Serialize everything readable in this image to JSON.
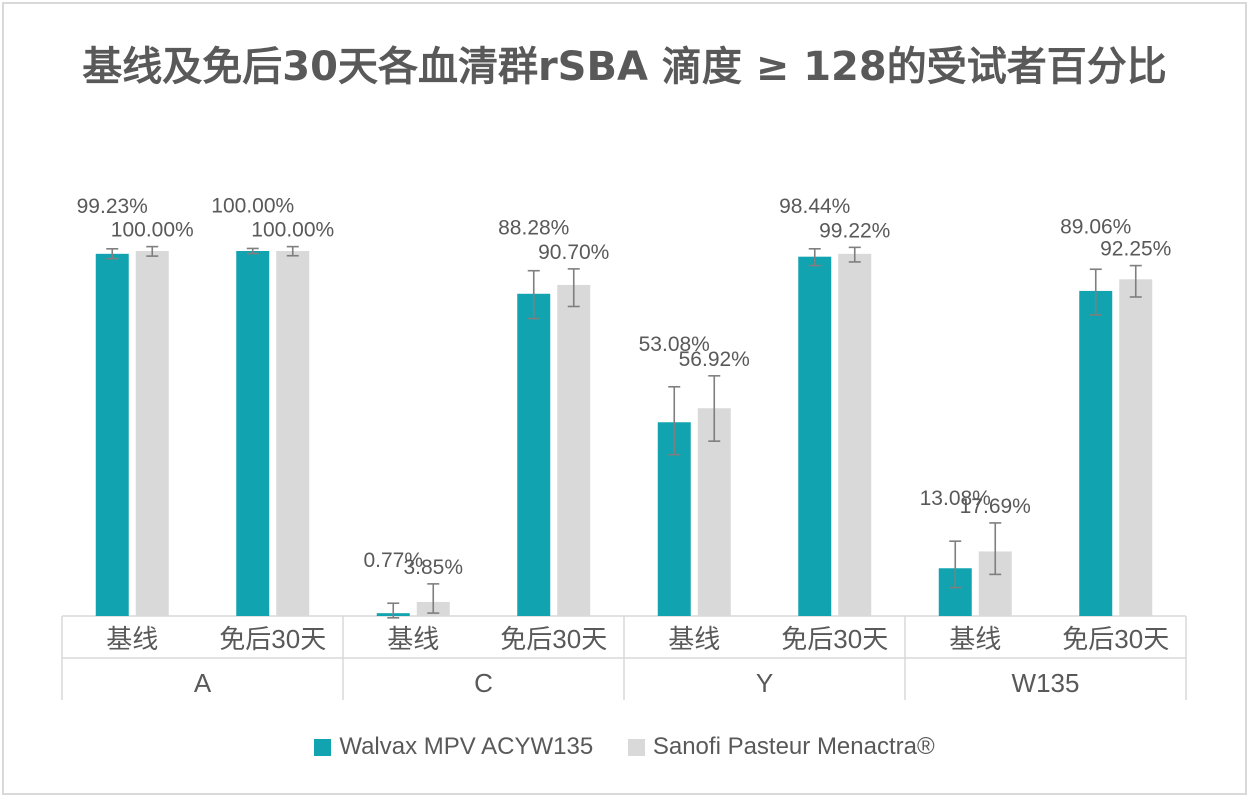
{
  "chart_data": {
    "type": "bar",
    "title": "基线及免后30天各血清群rSBA 滴度 ≥ 128的受试者百分比",
    "groups": [
      "A",
      "C",
      "Y",
      "W135"
    ],
    "timepoints": [
      "基线",
      "免后30天"
    ],
    "series": [
      {
        "name": "Walvax MPV ACYW135",
        "color": "#12a3b0",
        "values": [
          [
            99.23,
            100.0
          ],
          [
            0.77,
            88.28
          ],
          [
            53.08,
            98.44
          ],
          [
            13.08,
            89.06
          ]
        ],
        "labels": [
          [
            "99.23%",
            "100.00%"
          ],
          [
            "0.77%",
            "88.28%"
          ],
          [
            "53.08%",
            "98.44%"
          ],
          [
            "13.08%",
            "89.06%"
          ]
        ],
        "error_bars": [
          [
            [
              97.9,
              100.6
            ],
            [
              99.3,
              100.7
            ]
          ],
          [
            [
              -0.5,
              3.5
            ],
            [
              81.5,
              94.6
            ]
          ],
          [
            [
              44.2,
              62.8
            ],
            [
              96.0,
              100.6
            ]
          ],
          [
            [
              7.8,
              20.5
            ],
            [
              82.5,
              95.0
            ]
          ]
        ]
      },
      {
        "name": "Sanofi Pasteur Menactra®",
        "color": "#d9d9d9",
        "values": [
          [
            100.0,
            100.0
          ],
          [
            3.85,
            90.7
          ],
          [
            56.92,
            99.22
          ],
          [
            17.69,
            92.25
          ]
        ],
        "labels": [
          [
            "100.00%",
            "100.00%"
          ],
          [
            "3.85%",
            "90.70%"
          ],
          [
            "56.92%",
            "99.22%"
          ],
          [
            "17.69%",
            "92.25%"
          ]
        ],
        "error_bars": [
          [
            [
              98.6,
              101.2
            ],
            [
              98.7,
              101.2
            ]
          ],
          [
            [
              0.8,
              8.8
            ],
            [
              84.8,
              95.1
            ]
          ],
          [
            [
              47.9,
              65.8
            ],
            [
              97.0,
              101.0
            ]
          ],
          [
            [
              11.4,
              25.5
            ],
            [
              87.4,
              96.0
            ]
          ]
        ]
      }
    ],
    "ylim": [
      0,
      100
    ],
    "grid": false,
    "legend_position": "bottom"
  }
}
